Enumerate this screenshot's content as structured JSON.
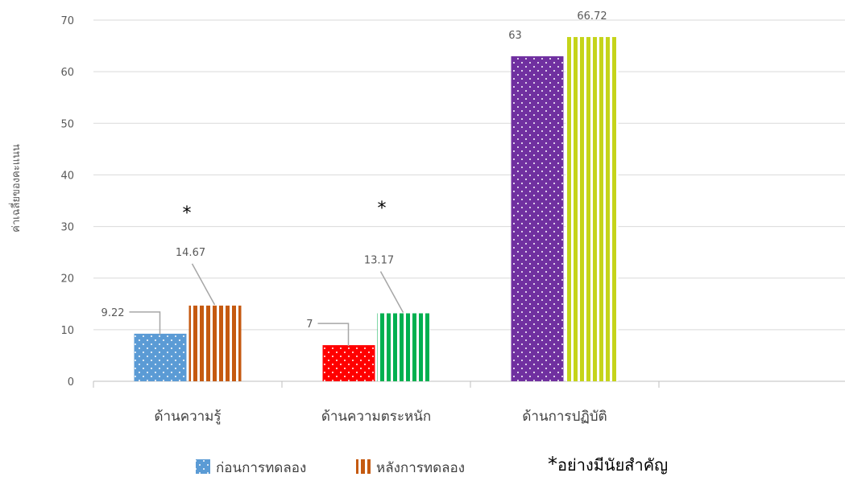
{
  "colors": {
    "before_bar1": "#5b9bd5",
    "after_bar1": "#c55a11",
    "before_bar2": "#ff0000",
    "after_bar2": "#00b050",
    "before_bar3": "#7030a0",
    "after_bar3": "#c5d41a"
  },
  "chart_data": {
    "type": "bar",
    "title": "",
    "xlabel": "",
    "ylabel": "ค่าเฉลี่ยของคะแนน",
    "ylim": [
      0,
      70
    ],
    "yticks": [
      0,
      10,
      20,
      30,
      40,
      50,
      60,
      70
    ],
    "grid": true,
    "legend_position": "bottom",
    "categories": [
      "ด้านความรู้",
      "ด้านความตระหนัก",
      "ด้านการปฏิบัติ"
    ],
    "series": [
      {
        "name": "ก่อนการทดลอง",
        "values": [
          9.22,
          7,
          63
        ]
      },
      {
        "name": "หลังการทดลอง",
        "values": [
          14.67,
          13.17,
          66.72
        ]
      }
    ],
    "data_labels": {
      "before": [
        "9.22",
        "7",
        "63"
      ],
      "after": [
        "14.67",
        "13.17",
        "66.72"
      ]
    },
    "significance_markers": [
      "*",
      "*",
      ""
    ],
    "annotation": {
      "asterisk": "*",
      "text": "อย่างมีนัยสำคัญ"
    }
  }
}
